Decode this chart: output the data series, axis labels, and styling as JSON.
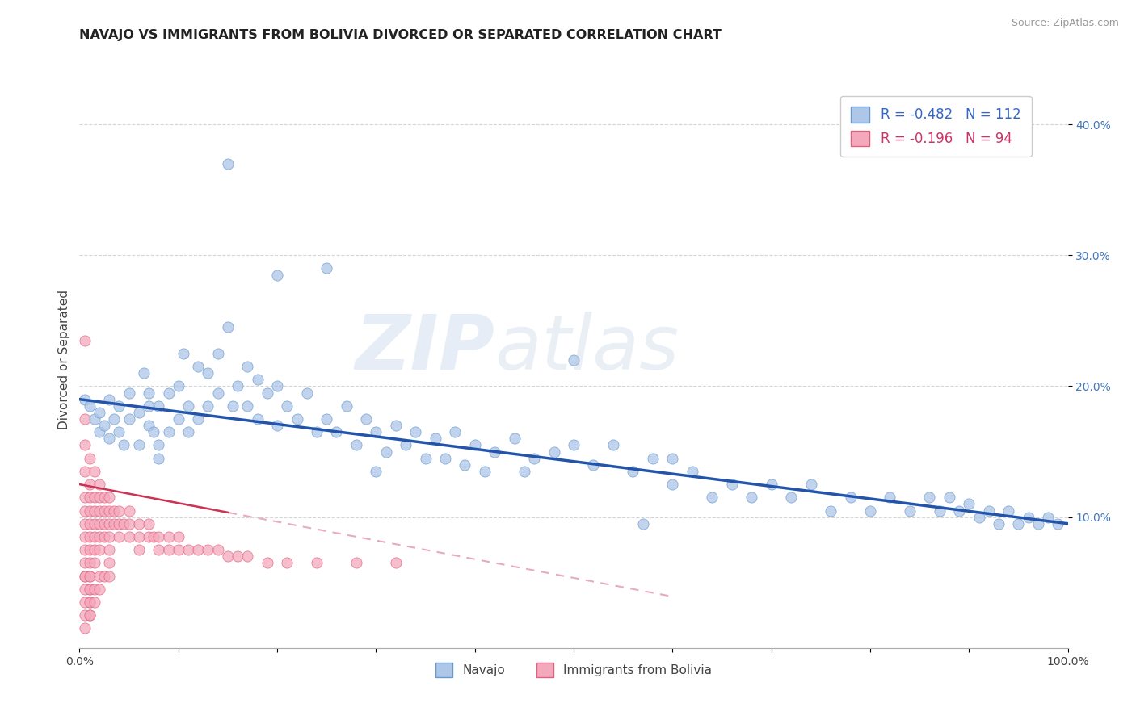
{
  "title": "NAVAJO VS IMMIGRANTS FROM BOLIVIA DIVORCED OR SEPARATED CORRELATION CHART",
  "source_text": "Source: ZipAtlas.com",
  "ylabel": "Divorced or Separated",
  "legend_label_blue": "Navajo",
  "legend_label_pink": "Immigrants from Bolivia",
  "r_blue": -0.482,
  "n_blue": 112,
  "r_pink": -0.196,
  "n_pink": 94,
  "xlim": [
    0.0,
    1.0
  ],
  "ylim": [
    0.0,
    0.44
  ],
  "xticks": [
    0.0,
    0.1,
    0.2,
    0.3,
    0.4,
    0.5,
    0.6,
    0.7,
    0.8,
    0.9,
    1.0
  ],
  "xticklabels": [
    "0.0%",
    "",
    "",
    "",
    "",
    "",
    "",
    "",
    "",
    "",
    "100.0%"
  ],
  "ytick_positions": [
    0.1,
    0.2,
    0.3,
    0.4
  ],
  "yticklabels": [
    "10.0%",
    "20.0%",
    "30.0%",
    "40.0%"
  ],
  "color_blue": "#aec6e8",
  "color_pink": "#f4a8bb",
  "edge_blue": "#6699cc",
  "edge_pink": "#e06080",
  "line_blue_color": "#2255aa",
  "line_pink_color": "#cc3355",
  "line_pink_dash_color": "#e8aabf",
  "watermark_zip": "ZIP",
  "watermark_atlas": "atlas",
  "title_fontsize": 11.5,
  "tick_fontsize": 10,
  "navajo_x": [
    0.005,
    0.01,
    0.015,
    0.02,
    0.02,
    0.025,
    0.03,
    0.03,
    0.035,
    0.04,
    0.04,
    0.045,
    0.05,
    0.05,
    0.06,
    0.06,
    0.065,
    0.07,
    0.07,
    0.075,
    0.08,
    0.08,
    0.09,
    0.09,
    0.1,
    0.1,
    0.105,
    0.11,
    0.11,
    0.12,
    0.12,
    0.13,
    0.13,
    0.14,
    0.14,
    0.15,
    0.155,
    0.16,
    0.17,
    0.17,
    0.18,
    0.18,
    0.19,
    0.2,
    0.2,
    0.21,
    0.22,
    0.23,
    0.24,
    0.25,
    0.26,
    0.27,
    0.28,
    0.29,
    0.3,
    0.31,
    0.32,
    0.33,
    0.34,
    0.35,
    0.36,
    0.37,
    0.38,
    0.39,
    0.4,
    0.41,
    0.42,
    0.44,
    0.46,
    0.48,
    0.5,
    0.52,
    0.54,
    0.56,
    0.58,
    0.6,
    0.62,
    0.64,
    0.66,
    0.68,
    0.7,
    0.72,
    0.74,
    0.76,
    0.78,
    0.8,
    0.82,
    0.84,
    0.86,
    0.87,
    0.88,
    0.89,
    0.9,
    0.91,
    0.92,
    0.93,
    0.94,
    0.95,
    0.96,
    0.97,
    0.98,
    0.99,
    0.5,
    0.6,
    0.57,
    0.45,
    0.15,
    0.2,
    0.25,
    0.3,
    0.07,
    0.08
  ],
  "navajo_y": [
    0.19,
    0.185,
    0.175,
    0.165,
    0.18,
    0.17,
    0.16,
    0.19,
    0.175,
    0.165,
    0.185,
    0.155,
    0.175,
    0.195,
    0.18,
    0.155,
    0.21,
    0.17,
    0.195,
    0.165,
    0.185,
    0.155,
    0.195,
    0.165,
    0.2,
    0.175,
    0.225,
    0.185,
    0.165,
    0.215,
    0.175,
    0.21,
    0.185,
    0.225,
    0.195,
    0.245,
    0.185,
    0.2,
    0.215,
    0.185,
    0.205,
    0.175,
    0.195,
    0.2,
    0.17,
    0.185,
    0.175,
    0.195,
    0.165,
    0.175,
    0.165,
    0.185,
    0.155,
    0.175,
    0.165,
    0.15,
    0.17,
    0.155,
    0.165,
    0.145,
    0.16,
    0.145,
    0.165,
    0.14,
    0.155,
    0.135,
    0.15,
    0.16,
    0.145,
    0.15,
    0.22,
    0.14,
    0.155,
    0.135,
    0.145,
    0.125,
    0.135,
    0.115,
    0.125,
    0.115,
    0.125,
    0.115,
    0.125,
    0.105,
    0.115,
    0.105,
    0.115,
    0.105,
    0.115,
    0.105,
    0.115,
    0.105,
    0.11,
    0.1,
    0.105,
    0.095,
    0.105,
    0.095,
    0.1,
    0.095,
    0.1,
    0.095,
    0.155,
    0.145,
    0.095,
    0.135,
    0.37,
    0.285,
    0.29,
    0.135,
    0.185,
    0.145
  ],
  "bolivia_x": [
    0.005,
    0.005,
    0.005,
    0.005,
    0.005,
    0.005,
    0.005,
    0.005,
    0.005,
    0.005,
    0.005,
    0.01,
    0.01,
    0.01,
    0.01,
    0.01,
    0.01,
    0.01,
    0.01,
    0.01,
    0.01,
    0.01,
    0.01,
    0.015,
    0.015,
    0.015,
    0.015,
    0.015,
    0.015,
    0.015,
    0.02,
    0.02,
    0.02,
    0.02,
    0.02,
    0.02,
    0.025,
    0.025,
    0.025,
    0.025,
    0.03,
    0.03,
    0.03,
    0.03,
    0.03,
    0.035,
    0.035,
    0.04,
    0.04,
    0.04,
    0.045,
    0.05,
    0.05,
    0.05,
    0.06,
    0.06,
    0.06,
    0.07,
    0.07,
    0.075,
    0.08,
    0.08,
    0.09,
    0.09,
    0.1,
    0.1,
    0.11,
    0.12,
    0.13,
    0.14,
    0.15,
    0.16,
    0.17,
    0.19,
    0.21,
    0.24,
    0.28,
    0.32,
    0.005,
    0.005,
    0.005,
    0.005,
    0.005,
    0.01,
    0.01,
    0.01,
    0.01,
    0.015,
    0.015,
    0.02,
    0.02,
    0.025,
    0.03,
    0.03
  ],
  "bolivia_y": [
    0.235,
    0.175,
    0.155,
    0.135,
    0.115,
    0.105,
    0.095,
    0.085,
    0.075,
    0.065,
    0.055,
    0.145,
    0.125,
    0.115,
    0.105,
    0.095,
    0.085,
    0.075,
    0.065,
    0.055,
    0.045,
    0.035,
    0.025,
    0.135,
    0.115,
    0.105,
    0.095,
    0.085,
    0.075,
    0.065,
    0.125,
    0.115,
    0.105,
    0.095,
    0.085,
    0.075,
    0.115,
    0.105,
    0.095,
    0.085,
    0.115,
    0.105,
    0.095,
    0.085,
    0.075,
    0.105,
    0.095,
    0.105,
    0.095,
    0.085,
    0.095,
    0.105,
    0.095,
    0.085,
    0.095,
    0.085,
    0.075,
    0.095,
    0.085,
    0.085,
    0.085,
    0.075,
    0.085,
    0.075,
    0.085,
    0.075,
    0.075,
    0.075,
    0.075,
    0.075,
    0.07,
    0.07,
    0.07,
    0.065,
    0.065,
    0.065,
    0.065,
    0.065,
    0.015,
    0.025,
    0.035,
    0.045,
    0.055,
    0.025,
    0.035,
    0.045,
    0.055,
    0.035,
    0.045,
    0.045,
    0.055,
    0.055,
    0.065,
    0.055
  ],
  "blue_line_x0": 0.0,
  "blue_line_y0": 0.19,
  "blue_line_x1": 1.0,
  "blue_line_y1": 0.095,
  "pink_line_x0": 0.0,
  "pink_line_y0": 0.125,
  "pink_line_x1": 0.35,
  "pink_line_y1": 0.075
}
